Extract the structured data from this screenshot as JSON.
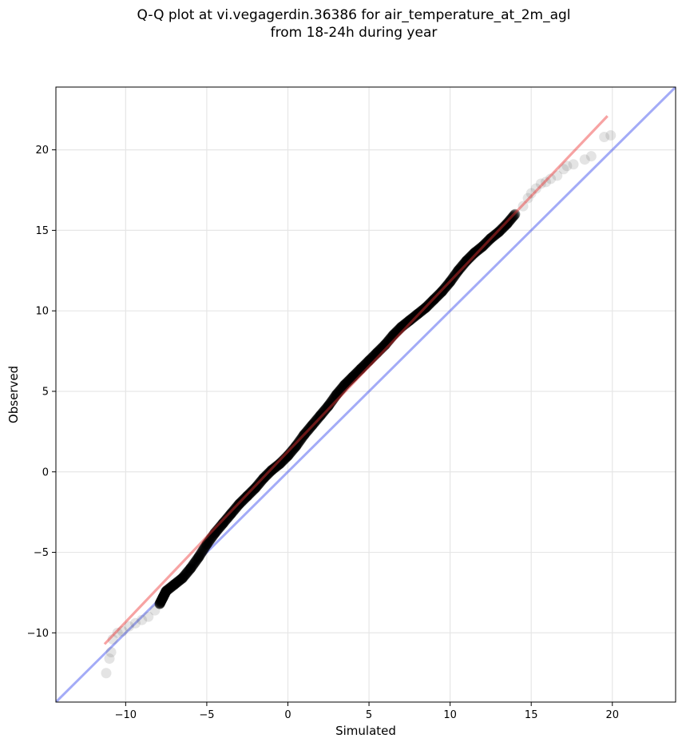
{
  "chart_data": {
    "type": "scatter",
    "title_lines": [
      "Q-Q plot at vi.vegagerdin.36386 for air_temperature_at_2m_agl",
      "from 18-24h during year"
    ],
    "xlabel": "Simulated",
    "ylabel": "Observed",
    "xlim": [
      -14.3,
      23.9
    ],
    "ylim": [
      -14.3,
      23.9
    ],
    "x_ticks": [
      -10,
      -5,
      0,
      5,
      10,
      15,
      20
    ],
    "y_ticks": [
      -10,
      -5,
      0,
      5,
      10,
      15,
      20
    ],
    "x_tick_labels": [
      "−10",
      "−5",
      "0",
      "5",
      "10",
      "15",
      "20"
    ],
    "y_tick_labels": [
      "−10",
      "−5",
      "0",
      "5",
      "10",
      "15",
      "20"
    ],
    "grid": true,
    "series": [
      {
        "role": "quantiles",
        "color": "#000000",
        "points": [
          [
            -11.2,
            -12.5
          ],
          [
            -11.0,
            -11.6
          ],
          [
            -10.9,
            -11.2
          ],
          [
            -10.8,
            -10.4
          ],
          [
            -10.5,
            -10.0
          ],
          [
            -10.2,
            -9.9
          ],
          [
            -9.8,
            -9.6
          ],
          [
            -9.4,
            -9.4
          ],
          [
            -9.0,
            -9.2
          ],
          [
            -8.6,
            -9.0
          ],
          [
            -8.2,
            -8.6
          ],
          [
            -7.9,
            -8.2
          ],
          [
            -7.7,
            -7.8
          ],
          [
            -7.5,
            -7.4
          ],
          [
            -7.0,
            -7.0
          ],
          [
            -6.5,
            -6.6
          ],
          [
            -6.0,
            -6.0
          ],
          [
            -5.5,
            -5.3
          ],
          [
            -5.0,
            -4.5
          ],
          [
            -4.5,
            -3.8
          ],
          [
            -4.0,
            -3.2
          ],
          [
            -3.5,
            -2.6
          ],
          [
            -3.0,
            -2.0
          ],
          [
            -2.5,
            -1.5
          ],
          [
            -2.0,
            -1.0
          ],
          [
            -1.5,
            -0.4
          ],
          [
            -1.0,
            0.1
          ],
          [
            -0.5,
            0.5
          ],
          [
            0.0,
            1.0
          ],
          [
            0.5,
            1.6
          ],
          [
            1.0,
            2.3
          ],
          [
            1.5,
            2.9
          ],
          [
            2.0,
            3.5
          ],
          [
            2.5,
            4.1
          ],
          [
            3.0,
            4.8
          ],
          [
            3.5,
            5.4
          ],
          [
            4.0,
            5.9
          ],
          [
            4.5,
            6.4
          ],
          [
            5.0,
            6.9
          ],
          [
            5.5,
            7.4
          ],
          [
            6.0,
            7.9
          ],
          [
            6.5,
            8.5
          ],
          [
            7.0,
            9.0
          ],
          [
            7.5,
            9.4
          ],
          [
            8.0,
            9.8
          ],
          [
            8.5,
            10.2
          ],
          [
            9.0,
            10.7
          ],
          [
            9.5,
            11.2
          ],
          [
            10.0,
            11.8
          ],
          [
            10.5,
            12.5
          ],
          [
            11.0,
            13.1
          ],
          [
            11.5,
            13.6
          ],
          [
            12.0,
            14.0
          ],
          [
            12.5,
            14.5
          ],
          [
            13.0,
            14.9
          ],
          [
            13.5,
            15.4
          ],
          [
            14.0,
            16.0
          ],
          [
            14.5,
            16.5
          ],
          [
            14.8,
            17.0
          ],
          [
            15.0,
            17.3
          ],
          [
            15.3,
            17.6
          ],
          [
            15.6,
            17.9
          ],
          [
            15.9,
            18.0
          ],
          [
            16.2,
            18.2
          ],
          [
            16.6,
            18.4
          ],
          [
            17.0,
            18.8
          ],
          [
            17.2,
            19.0
          ],
          [
            17.6,
            19.1
          ],
          [
            18.3,
            19.4
          ],
          [
            18.7,
            19.6
          ],
          [
            19.5,
            20.8
          ],
          [
            19.9,
            20.9
          ]
        ]
      },
      {
        "role": "fitted-line",
        "color": "#ee3333",
        "points": [
          [
            -11.3,
            -10.7
          ],
          [
            19.7,
            22.1
          ]
        ]
      },
      {
        "role": "identity-line",
        "color": "#3344ee",
        "points": [
          [
            -14.3,
            -14.3
          ],
          [
            23.9,
            23.9
          ]
        ]
      }
    ]
  }
}
